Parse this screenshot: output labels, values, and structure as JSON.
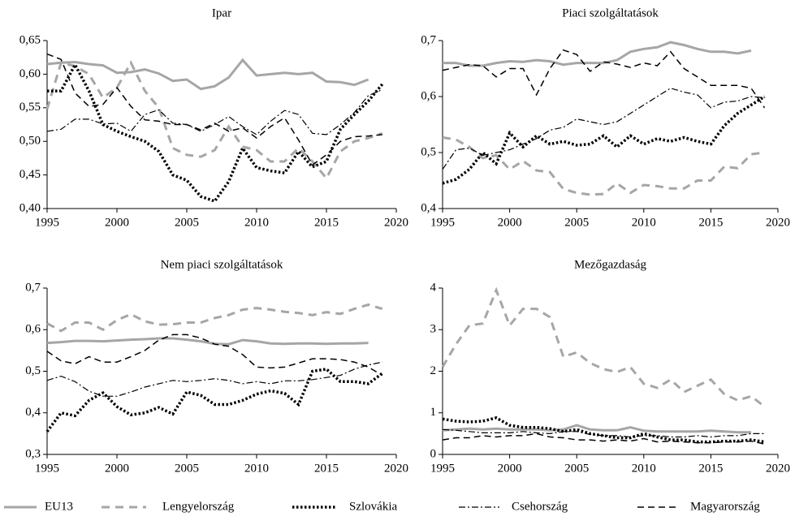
{
  "chart_data": [
    {
      "type": "line",
      "title": "Ipar",
      "x": [
        1995,
        1996,
        1997,
        1998,
        1999,
        2000,
        2001,
        2002,
        2003,
        2004,
        2005,
        2006,
        2007,
        2008,
        2009,
        2010,
        2011,
        2012,
        2013,
        2014,
        2015,
        2016,
        2017,
        2018,
        2019
      ],
      "xlim": [
        1995,
        2020
      ],
      "xticks": [
        1995,
        2000,
        2005,
        2010,
        2015,
        2020
      ],
      "ylim": [
        0.4,
        0.65
      ],
      "yticks": [
        {
          "value": 0.4,
          "label": "0,40"
        },
        {
          "value": 0.45,
          "label": "0,45"
        },
        {
          "value": 0.5,
          "label": "0,50"
        },
        {
          "value": 0.55,
          "label": "0,55"
        },
        {
          "value": 0.6,
          "label": "0,60"
        },
        {
          "value": 0.65,
          "label": "0,65"
        }
      ],
      "series": [
        {
          "name": "EU13",
          "color": "#a6a6a6",
          "style": "solid",
          "values": [
            0.615,
            0.617,
            0.618,
            0.615,
            0.613,
            0.602,
            0.603,
            0.607,
            0.601,
            0.59,
            0.592,
            0.578,
            0.582,
            0.595,
            0.621,
            0.598,
            0.6,
            0.602,
            0.6,
            0.602,
            0.589,
            0.588,
            0.584,
            0.592,
            null
          ]
        },
        {
          "name": "Lengyelország",
          "color": "#a6a6a6",
          "style": "dashed",
          "values": [
            0.548,
            0.617,
            0.612,
            0.6,
            0.565,
            0.58,
            0.617,
            0.575,
            0.55,
            0.49,
            0.48,
            0.477,
            0.487,
            0.522,
            0.492,
            0.487,
            0.47,
            0.47,
            0.49,
            0.47,
            0.445,
            0.485,
            0.5,
            0.505,
            0.512
          ]
        },
        {
          "name": "Szlovákia",
          "color": "#000000",
          "style": "dotted",
          "values": [
            0.575,
            0.575,
            0.614,
            0.575,
            0.525,
            0.515,
            0.507,
            0.5,
            0.485,
            0.45,
            0.442,
            0.418,
            0.411,
            0.44,
            0.49,
            0.461,
            0.456,
            0.453,
            0.485,
            0.462,
            0.47,
            0.518,
            0.54,
            0.56,
            0.585
          ]
        },
        {
          "name": "Csehország",
          "color": "#000000",
          "style": "dashdot",
          "values": [
            0.515,
            0.518,
            0.533,
            0.533,
            0.526,
            0.527,
            0.515,
            0.54,
            0.547,
            0.527,
            0.525,
            0.515,
            0.525,
            0.537,
            0.522,
            0.51,
            0.53,
            0.546,
            0.54,
            0.512,
            0.51,
            0.525,
            0.543,
            0.568,
            0.577
          ]
        },
        {
          "name": "Magyarország",
          "color": "#000000",
          "style": "dash",
          "values": [
            0.63,
            0.622,
            0.572,
            0.552,
            0.555,
            0.58,
            0.552,
            0.532,
            0.53,
            0.525,
            0.525,
            0.517,
            0.527,
            0.515,
            0.52,
            0.505,
            0.522,
            0.535,
            0.502,
            0.465,
            0.48,
            0.5,
            0.507,
            0.508,
            0.51
          ]
        }
      ]
    },
    {
      "type": "line",
      "title": "Piaci szolgáltatások",
      "x": [
        1995,
        1996,
        1997,
        1998,
        1999,
        2000,
        2001,
        2002,
        2003,
        2004,
        2005,
        2006,
        2007,
        2008,
        2009,
        2010,
        2011,
        2012,
        2013,
        2014,
        2015,
        2016,
        2017,
        2018,
        2019
      ],
      "xlim": [
        1995,
        2020
      ],
      "xticks": [
        1995,
        2000,
        2005,
        2010,
        2015,
        2020
      ],
      "ylim": [
        0.4,
        0.7
      ],
      "yticks": [
        {
          "value": 0.4,
          "label": "0,4"
        },
        {
          "value": 0.5,
          "label": "0,5"
        },
        {
          "value": 0.6,
          "label": "0,6"
        },
        {
          "value": 0.7,
          "label": "0,7"
        }
      ],
      "series": [
        {
          "color": "#a6a6a6",
          "style": "solid",
          "values": [
            0.66,
            0.66,
            0.655,
            0.655,
            0.66,
            0.663,
            0.662,
            0.665,
            0.663,
            0.657,
            0.66,
            0.66,
            0.66,
            0.665,
            0.68,
            0.685,
            0.688,
            0.697,
            0.692,
            0.685,
            0.68,
            0.68,
            0.677,
            0.682,
            null
          ]
        },
        {
          "color": "#a6a6a6",
          "style": "dashed",
          "values": [
            0.527,
            0.523,
            0.51,
            0.49,
            0.495,
            0.47,
            0.485,
            0.468,
            0.465,
            0.435,
            0.428,
            0.425,
            0.426,
            0.445,
            0.428,
            0.442,
            0.44,
            0.436,
            0.436,
            0.45,
            0.45,
            0.475,
            0.472,
            0.497,
            0.5
          ]
        },
        {
          "color": "#000000",
          "style": "dotted",
          "values": [
            0.445,
            0.452,
            0.47,
            0.5,
            0.48,
            0.535,
            0.51,
            0.53,
            0.515,
            0.52,
            0.513,
            0.515,
            0.53,
            0.51,
            0.53,
            0.515,
            0.525,
            0.52,
            0.527,
            0.52,
            0.515,
            0.548,
            0.57,
            0.585,
            0.6
          ]
        },
        {
          "color": "#000000",
          "style": "dashdot",
          "values": [
            0.47,
            0.505,
            0.508,
            0.495,
            0.5,
            0.505,
            0.515,
            0.525,
            0.54,
            0.545,
            0.56,
            0.555,
            0.55,
            0.555,
            0.57,
            0.585,
            0.6,
            0.615,
            0.608,
            0.603,
            0.58,
            0.59,
            0.592,
            0.6,
            0.598
          ]
        },
        {
          "color": "#000000",
          "style": "dash",
          "values": [
            0.647,
            0.652,
            0.657,
            0.655,
            0.635,
            0.65,
            0.65,
            0.603,
            0.65,
            0.683,
            0.675,
            0.645,
            0.662,
            0.658,
            0.652,
            0.66,
            0.655,
            0.68,
            0.65,
            0.635,
            0.62,
            0.62,
            0.62,
            0.615,
            0.58
          ]
        }
      ]
    },
    {
      "type": "line",
      "title": "Nem piaci szolgáltatások",
      "x": [
        1995,
        1996,
        1997,
        1998,
        1999,
        2000,
        2001,
        2002,
        2003,
        2004,
        2005,
        2006,
        2007,
        2008,
        2009,
        2010,
        2011,
        2012,
        2013,
        2014,
        2015,
        2016,
        2017,
        2018,
        2019
      ],
      "xlim": [
        1995,
        2020
      ],
      "xticks": [
        1995,
        2000,
        2005,
        2010,
        2015,
        2020
      ],
      "ylim": [
        0.3,
        0.7
      ],
      "yticks": [
        {
          "value": 0.3,
          "label": "0,3"
        },
        {
          "value": 0.4,
          "label": "0,4"
        },
        {
          "value": 0.5,
          "label": "0,5"
        },
        {
          "value": 0.6,
          "label": "0,6"
        },
        {
          "value": 0.7,
          "label": "0,7"
        }
      ],
      "series": [
        {
          "color": "#a6a6a6",
          "style": "solid",
          "values": [
            0.568,
            0.57,
            0.573,
            0.573,
            0.572,
            0.574,
            0.576,
            0.577,
            0.579,
            0.579,
            0.576,
            0.572,
            0.566,
            0.565,
            0.575,
            0.572,
            0.567,
            0.566,
            0.567,
            0.567,
            0.566,
            0.567,
            0.567,
            0.568,
            null
          ]
        },
        {
          "color": "#a6a6a6",
          "style": "dashed",
          "values": [
            0.615,
            0.597,
            0.617,
            0.617,
            0.6,
            0.623,
            0.637,
            0.62,
            0.612,
            0.613,
            0.617,
            0.617,
            0.628,
            0.635,
            0.648,
            0.652,
            0.648,
            0.643,
            0.64,
            0.635,
            0.642,
            0.638,
            0.65,
            0.66,
            0.65
          ]
        },
        {
          "color": "#000000",
          "style": "dotted",
          "values": [
            0.355,
            0.4,
            0.393,
            0.43,
            0.448,
            0.415,
            0.395,
            0.4,
            0.413,
            0.397,
            0.45,
            0.442,
            0.42,
            0.42,
            0.43,
            0.445,
            0.453,
            0.447,
            0.42,
            0.5,
            0.505,
            0.475,
            0.475,
            0.47,
            0.495
          ]
        },
        {
          "color": "#000000",
          "style": "dashdot",
          "values": [
            0.478,
            0.488,
            0.475,
            0.452,
            0.44,
            0.44,
            0.45,
            0.462,
            0.47,
            0.478,
            0.475,
            0.478,
            0.482,
            0.478,
            0.47,
            0.475,
            0.47,
            0.477,
            0.477,
            0.48,
            0.485,
            0.49,
            0.505,
            0.515,
            0.522
          ]
        },
        {
          "color": "#000000",
          "style": "dash",
          "values": [
            0.548,
            0.525,
            0.518,
            0.535,
            0.522,
            0.522,
            0.535,
            0.55,
            0.575,
            0.588,
            0.588,
            0.58,
            0.565,
            0.56,
            0.54,
            0.51,
            0.508,
            0.51,
            0.52,
            0.53,
            0.53,
            0.528,
            0.522,
            0.51,
            0.49
          ]
        }
      ]
    },
    {
      "type": "line",
      "title": "Mezőgazdaság",
      "x": [
        1995,
        1996,
        1997,
        1998,
        1999,
        2000,
        2001,
        2002,
        2003,
        2004,
        2005,
        2006,
        2007,
        2008,
        2009,
        2010,
        2011,
        2012,
        2013,
        2014,
        2015,
        2016,
        2017,
        2018,
        2019
      ],
      "xlim": [
        1995,
        2020
      ],
      "xticks": [
        1995,
        2000,
        2005,
        2010,
        2015,
        2020
      ],
      "ylim": [
        0,
        4
      ],
      "yticks": [
        0,
        1,
        2,
        3,
        4
      ],
      "series": [
        {
          "color": "#a6a6a6",
          "style": "solid",
          "values": [
            0.58,
            0.6,
            0.62,
            0.6,
            0.62,
            0.6,
            0.6,
            0.6,
            0.58,
            0.6,
            0.7,
            0.6,
            0.58,
            0.58,
            0.65,
            0.57,
            0.55,
            0.55,
            0.55,
            0.55,
            0.57,
            0.55,
            0.53,
            0.53,
            null
          ]
        },
        {
          "color": "#a6a6a6",
          "style": "dashed",
          "values": [
            2.1,
            2.65,
            3.1,
            3.15,
            3.95,
            3.1,
            3.5,
            3.5,
            3.3,
            2.35,
            2.45,
            2.2,
            2.05,
            1.98,
            2.1,
            1.7,
            1.6,
            1.8,
            1.5,
            1.65,
            1.8,
            1.45,
            1.3,
            1.4,
            1.15
          ]
        },
        {
          "color": "#000000",
          "style": "dotted",
          "values": [
            0.85,
            0.8,
            0.78,
            0.8,
            0.88,
            0.7,
            0.65,
            0.65,
            0.62,
            0.55,
            0.6,
            0.5,
            0.45,
            0.4,
            0.4,
            0.5,
            0.42,
            0.35,
            0.35,
            0.3,
            0.3,
            0.32,
            0.32,
            0.35,
            0.3
          ]
        },
        {
          "color": "#000000",
          "style": "dashdot",
          "values": [
            0.6,
            0.58,
            0.55,
            0.52,
            0.52,
            0.52,
            0.55,
            0.52,
            0.5,
            0.55,
            0.55,
            0.48,
            0.45,
            0.45,
            0.42,
            0.45,
            0.45,
            0.42,
            0.42,
            0.45,
            0.42,
            0.45,
            0.45,
            0.5,
            0.5
          ]
        },
        {
          "color": "#000000",
          "style": "dash",
          "values": [
            0.35,
            0.4,
            0.4,
            0.45,
            0.42,
            0.45,
            0.45,
            0.5,
            0.42,
            0.4,
            0.35,
            0.35,
            0.32,
            0.35,
            0.32,
            0.38,
            0.3,
            0.32,
            0.3,
            0.28,
            0.28,
            0.3,
            0.3,
            0.32,
            0.25
          ]
        }
      ]
    }
  ]
}
